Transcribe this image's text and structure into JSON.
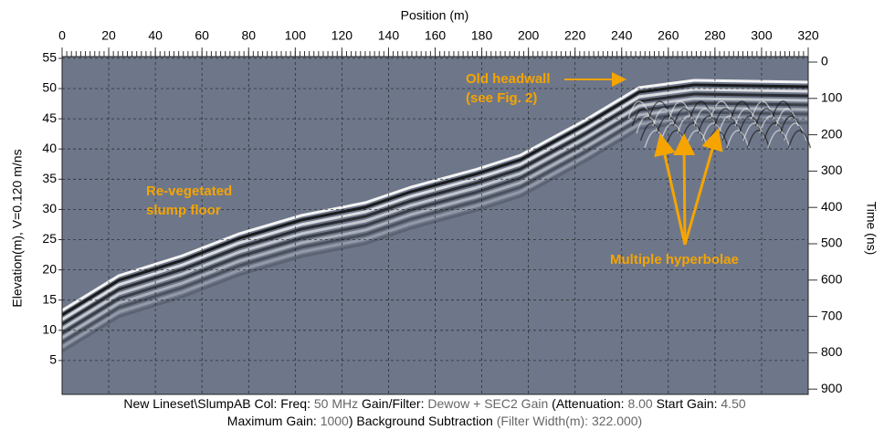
{
  "header": {
    "title": "Position (m)"
  },
  "axes": {
    "top": {
      "ticks": [
        0,
        20,
        40,
        60,
        80,
        100,
        120,
        140,
        160,
        180,
        200,
        220,
        240,
        260,
        280,
        300,
        320
      ]
    },
    "left": {
      "title": "Elevation(m), V=0.120 m/ns",
      "ticks": [
        5,
        10,
        15,
        20,
        25,
        30,
        35,
        40,
        45,
        50,
        55
      ]
    },
    "right": {
      "title": "Time (ns)",
      "ticks": [
        0,
        100,
        200,
        300,
        400,
        500,
        600,
        700,
        800,
        900
      ]
    }
  },
  "annotations": {
    "headwall": [
      "Old headwall",
      "(see Fig. 2)"
    ],
    "floor": [
      "Re-vegetated",
      "slump floor"
    ],
    "hyperbolae": "Multiple hyperbolae"
  },
  "footer": {
    "lines": [
      [
        "New Lineset\\SlumpAB  Col:  Freq: ",
        "50 MHz",
        " Gain/Filter: ",
        "Dewow + SEC2 Gain",
        " (Attenuation: ",
        "8.00",
        " Start Gain: ",
        "4.50"
      ],
      [
        "Maximum Gain: ",
        "1000",
        ") Background Subtraction ",
        "(Filter Width(m): 322.000)"
      ]
    ]
  }
}
